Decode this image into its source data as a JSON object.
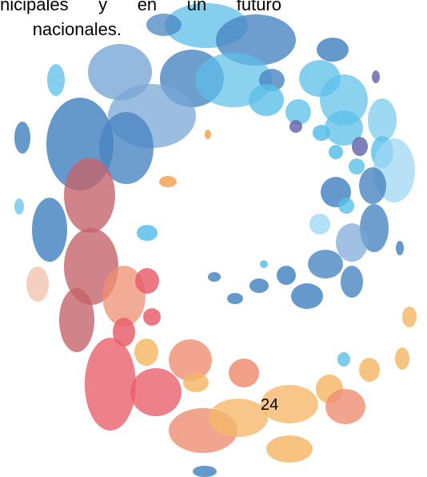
{
  "body_text": {
    "line_1": "nicipales y en un futuro",
    "line_2": "nacionales."
  },
  "page_number": "24",
  "decoration": {
    "name": "ring-of-colored-ellipses",
    "colors": {
      "dark_blue": "#4a86c2",
      "mid_blue": "#78a7d6",
      "light_blue": "#5bbfe8",
      "pale_blue": "#9fd8f2",
      "purple": "#6a68ad",
      "red": "#e8606c",
      "mauve": "#c4646a",
      "salmon": "#ee8f72",
      "peach": "#f3c7b5",
      "orange": "#f3a352",
      "yellow_orange": "#f5b86a"
    }
  }
}
